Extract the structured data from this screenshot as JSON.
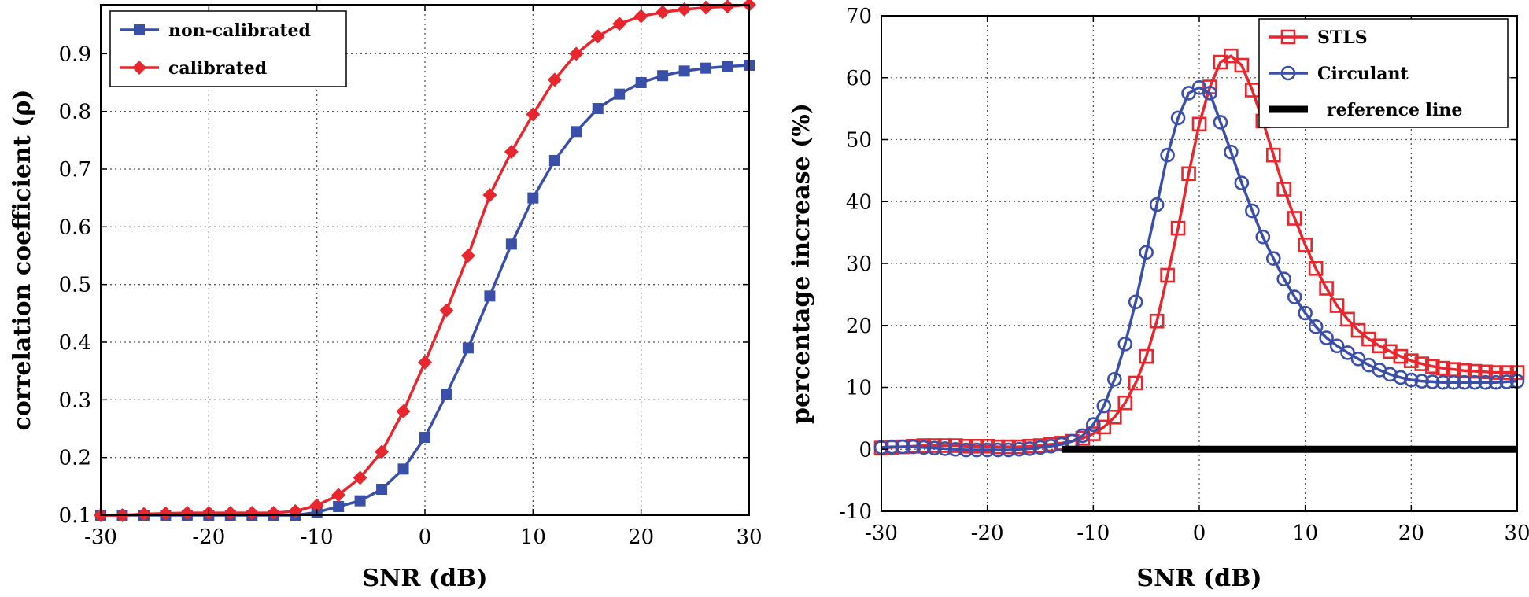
{
  "chart_data": [
    {
      "type": "line",
      "xlabel": "SNR (dB)",
      "ylabel": "correlation coefficient (ρ)",
      "xlim": [
        -30,
        30
      ],
      "ylim": [
        0.1,
        0.985
      ],
      "xticks": [
        -30,
        -20,
        -10,
        0,
        10,
        20,
        30
      ],
      "xtick_labels": [
        "-30",
        "-20",
        "-10",
        "0",
        "10",
        "20",
        "30"
      ],
      "yticks": [
        0.1,
        0.2,
        0.3,
        0.4,
        0.5,
        0.6,
        0.7,
        0.8,
        0.9
      ],
      "ytick_labels": [
        "0.1",
        "0.2",
        "0.3",
        "0.4",
        "0.5",
        "0.6",
        "0.7",
        "0.8",
        "0.9"
      ],
      "grid": true,
      "legend_position": "top-left",
      "series": [
        {
          "name": "non-calibrated",
          "color": "#3a4fa8",
          "marker": "square",
          "x": [
            -30,
            -28,
            -26,
            -24,
            -22,
            -20,
            -18,
            -16,
            -14,
            -12,
            -10,
            -8,
            -6,
            -4,
            -2,
            0,
            2,
            4,
            6,
            8,
            10,
            12,
            14,
            16,
            18,
            20,
            22,
            24,
            26,
            28,
            30
          ],
          "values": [
            0.1,
            0.1,
            0.1,
            0.1,
            0.1,
            0.1,
            0.1,
            0.1,
            0.1,
            0.1,
            0.105,
            0.115,
            0.125,
            0.145,
            0.18,
            0.235,
            0.31,
            0.39,
            0.48,
            0.57,
            0.65,
            0.715,
            0.765,
            0.805,
            0.83,
            0.85,
            0.862,
            0.87,
            0.875,
            0.878,
            0.88
          ]
        },
        {
          "name": "calibrated",
          "color": "#e8262d",
          "marker": "diamond",
          "x": [
            -30,
            -28,
            -26,
            -24,
            -22,
            -20,
            -18,
            -16,
            -14,
            -12,
            -10,
            -8,
            -6,
            -4,
            -2,
            0,
            2,
            4,
            6,
            8,
            10,
            12,
            14,
            16,
            18,
            20,
            22,
            24,
            26,
            28,
            30
          ],
          "values": [
            0.1,
            0.1,
            0.102,
            0.103,
            0.104,
            0.104,
            0.104,
            0.104,
            0.104,
            0.107,
            0.117,
            0.135,
            0.165,
            0.21,
            0.28,
            0.365,
            0.455,
            0.55,
            0.655,
            0.73,
            0.795,
            0.855,
            0.9,
            0.93,
            0.952,
            0.965,
            0.972,
            0.977,
            0.98,
            0.982,
            0.985
          ]
        }
      ]
    },
    {
      "type": "line",
      "xlabel": "SNR (dB)",
      "ylabel": "percentage increase (%)",
      "xlim": [
        -30,
        30
      ],
      "ylim": [
        -10,
        70
      ],
      "xticks": [
        -30,
        -20,
        -10,
        0,
        10,
        20,
        30
      ],
      "xtick_labels": [
        "-30",
        "-20",
        "-10",
        "0",
        "10",
        "20",
        "30"
      ],
      "yticks": [
        -10,
        0,
        10,
        20,
        30,
        40,
        50,
        60,
        70
      ],
      "ytick_labels": [
        "-10",
        "0",
        "10",
        "20",
        "30",
        "40",
        "50",
        "60",
        "70"
      ],
      "grid": true,
      "legend_position": "top-right",
      "series": [
        {
          "name": "STLS",
          "color": "#e8262d",
          "marker": "square-open",
          "x": [
            -30,
            -29,
            -28,
            -27,
            -26,
            -25,
            -24,
            -23,
            -22,
            -21,
            -20,
            -19,
            -18,
            -17,
            -16,
            -15,
            -14,
            -13,
            -12,
            -11,
            -10,
            -9,
            -8,
            -7,
            -6,
            -5,
            -4,
            -3,
            -2,
            -1,
            0,
            1,
            2,
            3,
            4,
            5,
            6,
            7,
            8,
            9,
            10,
            11,
            12,
            13,
            14,
            15,
            16,
            17,
            18,
            19,
            20,
            21,
            22,
            23,
            24,
            25,
            26,
            27,
            28,
            29,
            30
          ],
          "values": [
            0.2,
            0.3,
            0.4,
            0.5,
            0.6,
            0.6,
            0.6,
            0.6,
            0.5,
            0.5,
            0.5,
            0.4,
            0.4,
            0.4,
            0.5,
            0.6,
            0.8,
            1.0,
            1.3,
            1.8,
            2.5,
            3.6,
            5.2,
            7.5,
            10.7,
            15,
            20.7,
            28.1,
            35.7,
            44.5,
            52.5,
            58.5,
            62.5,
            63.5,
            62,
            58,
            53,
            47.5,
            42,
            37.3,
            33,
            29.2,
            26,
            23.2,
            21,
            19.2,
            17.8,
            16.7,
            15.8,
            15,
            14.3,
            13.8,
            13.4,
            13.1,
            12.9,
            12.7,
            12.6,
            12.5,
            12.4,
            12.4,
            12.4
          ]
        },
        {
          "name": "Circulant",
          "color": "#3a4fa8",
          "marker": "circle-open",
          "x": [
            -30,
            -29,
            -28,
            -27,
            -26,
            -25,
            -24,
            -23,
            -22,
            -21,
            -20,
            -19,
            -18,
            -17,
            -16,
            -15,
            -14,
            -13,
            -12,
            -11,
            -10,
            -9,
            -8,
            -7,
            -6,
            -5,
            -4,
            -3,
            -2,
            -1,
            0,
            1,
            2,
            3,
            4,
            5,
            6,
            7,
            8,
            9,
            10,
            11,
            12,
            13,
            14,
            15,
            16,
            17,
            18,
            19,
            20,
            21,
            22,
            23,
            24,
            25,
            26,
            27,
            28,
            29,
            30
          ],
          "values": [
            0.3,
            0.4,
            0.4,
            0.4,
            0.3,
            0.2,
            0.1,
            0.0,
            -0.1,
            -0.1,
            -0.1,
            -0.1,
            -0.1,
            0.0,
            0.1,
            0.3,
            0.5,
            0.8,
            1.3,
            2.2,
            4,
            7,
            11.3,
            17,
            23.8,
            31.8,
            39.5,
            47.5,
            53.5,
            57.5,
            58.4,
            57.5,
            52.8,
            48,
            43,
            38.5,
            34.3,
            30.8,
            27.5,
            24.6,
            22,
            19.8,
            18,
            16.7,
            15.6,
            14.6,
            13.6,
            12.8,
            12.1,
            11.6,
            11.2,
            11.0,
            10.9,
            10.8,
            10.8,
            10.8,
            10.8,
            10.8,
            10.8,
            10.9,
            11.0
          ]
        },
        {
          "name": "reference line",
          "color": "#000000",
          "marker": "none",
          "x": [
            -13,
            30
          ],
          "values": [
            0,
            0
          ]
        }
      ]
    }
  ]
}
